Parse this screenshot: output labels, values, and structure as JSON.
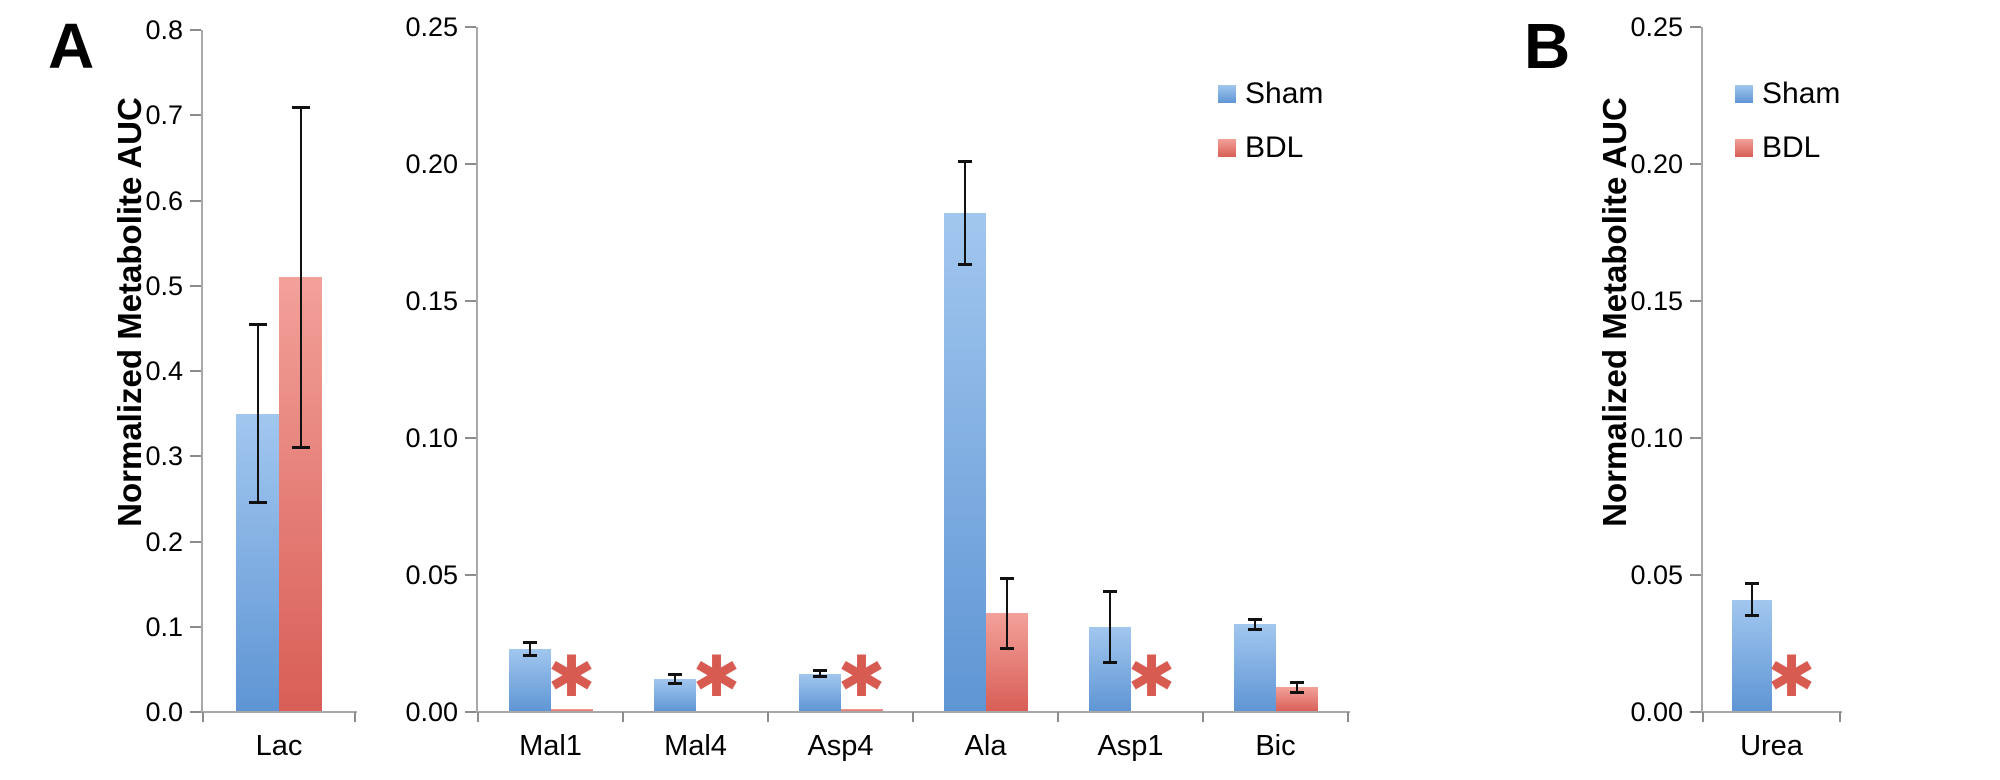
{
  "figure": {
    "panel_a_label": "A",
    "panel_b_label": "B",
    "y_axis_title": "Normalized Metabolite AUC",
    "legend": {
      "sham": "Sham",
      "bdl": "BDL"
    }
  },
  "colors": {
    "sham_gradient_top": "#a2c7ef",
    "sham_gradient_bottom": "#5e95d4",
    "bdl_gradient_top": "#f2a19a",
    "bdl_gradient_bottom": "#d85e56",
    "axis": "#a8a8a8",
    "tick": "#8c8c8c",
    "error_bar": "#111111",
    "asterisk": "#d85b51",
    "text": "#000000"
  },
  "chart_data": [
    {
      "id": "lac",
      "type": "bar",
      "panel": "A",
      "categories": [
        "Lac"
      ],
      "ylim": [
        0,
        0.8
      ],
      "ytick_step": 0.1,
      "ytick_decimals": 1,
      "grid": false,
      "legend_position": "none",
      "series": [
        {
          "name": "Sham",
          "values": [
            0.35
          ],
          "errors": [
            0.105
          ]
        },
        {
          "name": "BDL",
          "values": [
            0.51
          ],
          "errors": [
            0.2
          ]
        }
      ],
      "significance": [
        ""
      ]
    },
    {
      "id": "metabolites",
      "type": "bar",
      "panel": "A",
      "categories": [
        "Mal1",
        "Mal4",
        "Asp4",
        "Ala",
        "Asp1",
        "Bic"
      ],
      "ylim": [
        0,
        0.25
      ],
      "ytick_step": 0.05,
      "ytick_decimals": 2,
      "grid": false,
      "legend_position": "top-right",
      "series": [
        {
          "name": "Sham",
          "values": [
            0.023,
            0.012,
            0.014,
            0.182,
            0.031,
            0.032
          ],
          "errors": [
            0.0025,
            0.0018,
            0.0013,
            0.019,
            0.013,
            0.002
          ]
        },
        {
          "name": "BDL",
          "values": [
            0.001,
            0.0005,
            0.001,
            0.036,
            0,
            0.009
          ],
          "errors": [
            0,
            0,
            0,
            0.013,
            0,
            0.002
          ]
        }
      ],
      "significance": [
        "✱",
        "✱",
        "✱",
        "",
        "✱",
        ""
      ]
    },
    {
      "id": "urea",
      "type": "bar",
      "panel": "B",
      "categories": [
        "Urea"
      ],
      "ylim": [
        0,
        0.25
      ],
      "ytick_step": 0.05,
      "ytick_decimals": 2,
      "grid": false,
      "legend_position": "top-right",
      "series": [
        {
          "name": "Sham",
          "values": [
            0.041
          ],
          "errors": [
            0.006
          ]
        },
        {
          "name": "BDL",
          "values": [
            0.0005
          ],
          "errors": [
            0
          ]
        }
      ],
      "significance": [
        "✱"
      ]
    }
  ]
}
